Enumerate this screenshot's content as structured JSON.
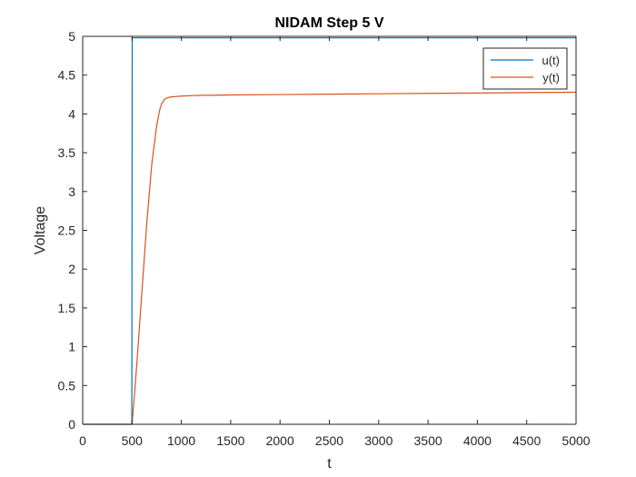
{
  "chart_data": {
    "type": "line",
    "title": "NIDAM Step 5 V",
    "xlabel": "t",
    "ylabel": "Voltage",
    "xlim": [
      0,
      5000
    ],
    "ylim": [
      0,
      5
    ],
    "xticks": [
      0,
      500,
      1000,
      1500,
      2000,
      2500,
      3000,
      3500,
      4000,
      4500,
      5000
    ],
    "yticks": [
      0,
      0.5,
      1,
      1.5,
      2,
      2.5,
      3,
      3.5,
      4,
      4.5,
      5
    ],
    "xtick_labels": [
      "0",
      "500",
      "1000",
      "1500",
      "2000",
      "2500",
      "3000",
      "3500",
      "4000",
      "4500",
      "5000"
    ],
    "ytick_labels": [
      "0",
      "0.5",
      "1",
      "1.5",
      "2",
      "2.5",
      "3",
      "3.5",
      "4",
      "4.5",
      "5"
    ],
    "grid": false,
    "legend_position": "top-right",
    "series": [
      {
        "name": "u(t)",
        "color": "#0072bd",
        "x": [
          0,
          498,
          502,
          5000
        ],
        "y": [
          0,
          0,
          4.98,
          4.98
        ]
      },
      {
        "name": "y(t)",
        "color": "#d95319",
        "x": [
          0,
          500,
          520,
          550,
          600,
          650,
          700,
          750,
          780,
          800,
          830,
          860,
          900,
          950,
          1000,
          1100,
          1200,
          1300,
          1500,
          2000,
          2500,
          3000,
          3500,
          4000,
          4500,
          5000
        ],
        "y": [
          0,
          0,
          0.3,
          0.8,
          1.7,
          2.6,
          3.35,
          3.85,
          4.05,
          4.13,
          4.19,
          4.21,
          4.22,
          4.225,
          4.23,
          4.235,
          4.24,
          4.24,
          4.245,
          4.25,
          4.255,
          4.26,
          4.265,
          4.27,
          4.275,
          4.28
        ]
      }
    ]
  }
}
